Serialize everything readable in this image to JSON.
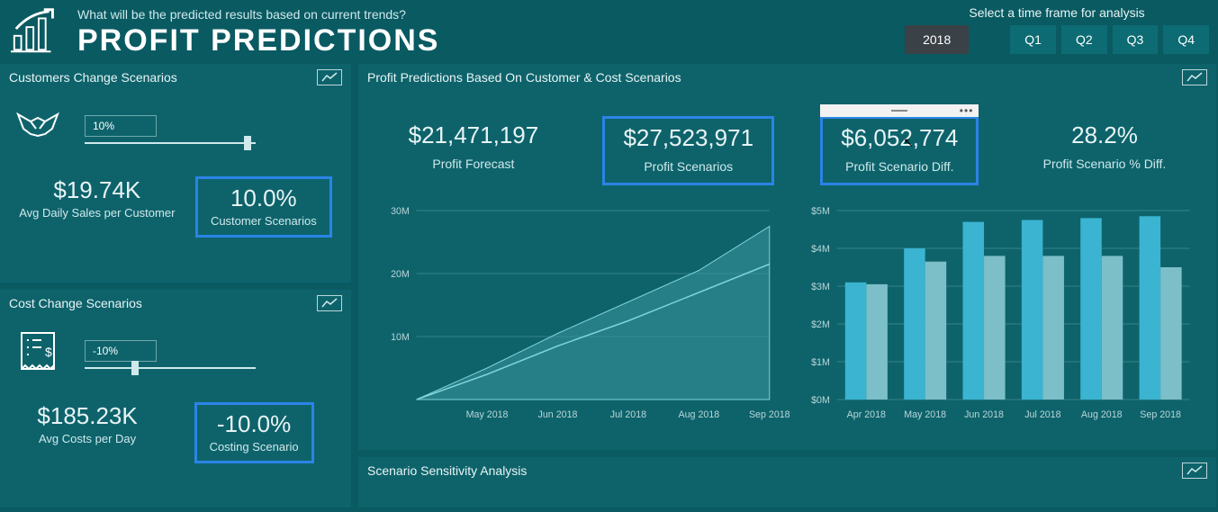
{
  "header": {
    "subtitle": "What will be the predicted results based on current trends?",
    "title": "PROFIT PREDICTIONS",
    "timeframe_label": "Select a time frame for analysis",
    "year_btn": "2018",
    "quarters": [
      "Q1",
      "Q2",
      "Q3",
      "Q4"
    ]
  },
  "customer_panel": {
    "title": "Customers Change Scenarios",
    "slider_value": "10%",
    "slider_pos_pct": 95,
    "metric1_val": "$19.74K",
    "metric1_label": "Avg Daily Sales per Customer",
    "metric2_val": "10.0%",
    "metric2_label": "Customer Scenarios"
  },
  "cost_panel": {
    "title": "Cost Change Scenarios",
    "slider_value": "-10%",
    "slider_pos_pct": 28,
    "metric1_val": "$185.23K",
    "metric1_label": "Avg Costs per Day",
    "metric2_val": "-10.0%",
    "metric2_label": "Costing Scenario"
  },
  "main_panel": {
    "title": "Profit Predictions Based On Customer & Cost Scenarios",
    "kpis": [
      {
        "val": "$21,471,197",
        "label": "Profit Forecast",
        "highlight": false,
        "handle": false
      },
      {
        "val": "$27,523,971",
        "label": "Profit Scenarios",
        "highlight": true,
        "handle": false
      },
      {
        "val": "$6,052,774",
        "label": "Profit Scenario Diff.",
        "highlight": true,
        "handle": true
      },
      {
        "val": "28.2%",
        "label": "Profit Scenario % Diff.",
        "highlight": false,
        "handle": false
      }
    ],
    "area_chart": {
      "x_labels": [
        "May 2018",
        "Jun 2018",
        "Jul 2018",
        "Aug 2018",
        "Sep 2018"
      ],
      "y_ticks": [
        0,
        10,
        20,
        30
      ],
      "y_tick_labels": [
        "",
        "10M",
        "20M",
        "30M"
      ],
      "series_line": [
        0,
        4,
        8.5,
        12.5,
        17,
        21.5
      ],
      "series_area": [
        0,
        5,
        10.5,
        15.5,
        20.5,
        27.5
      ],
      "line_color": "#7fd3da",
      "area_fill": "#3a959d",
      "area_opacity": 0.55,
      "grid_color": "#5ba0a7",
      "text_color": "#b9d6d9"
    },
    "bar_chart": {
      "x_labels": [
        "Apr 2018",
        "May 2018",
        "Jun 2018",
        "Jul 2018",
        "Aug 2018",
        "Sep 2018"
      ],
      "y_ticks": [
        0,
        1,
        2,
        3,
        4,
        5
      ],
      "y_tick_labels": [
        "$0M",
        "$1M",
        "$2M",
        "$3M",
        "$4M",
        "$5M"
      ],
      "series_light": [
        3.1,
        4.0,
        4.7,
        4.75,
        4.8,
        4.85
      ],
      "series_dark": [
        3.05,
        3.65,
        3.8,
        3.8,
        3.8,
        3.5
      ],
      "light_color": "#3ab4d1",
      "dark_color": "#7cbfc8",
      "grid_color": "#5ba0a7",
      "text_color": "#b9d6d9",
      "bar_group_width": 0.72
    }
  },
  "sensitivity_panel": {
    "title": "Scenario Sensitivity Analysis"
  },
  "colors": {
    "bg": "#0a5a62",
    "panel_bg": "#0e636b",
    "highlight_border": "#2a84e6"
  }
}
